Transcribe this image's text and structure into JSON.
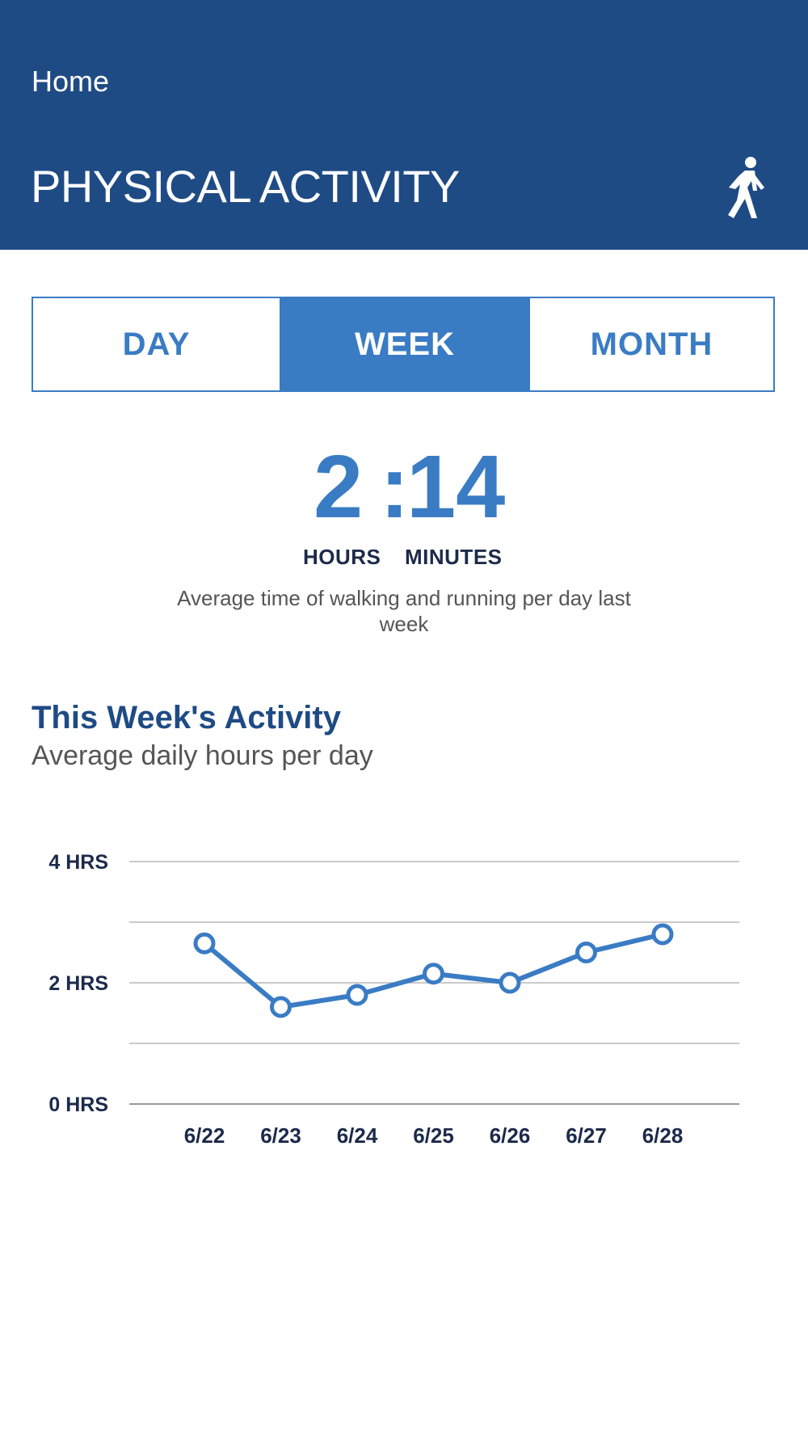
{
  "header": {
    "home_label": "Home",
    "title": "PHYSICAL ACTIVITY",
    "icon": "walking-person-icon"
  },
  "tabs": [
    {
      "label": "DAY",
      "active": false
    },
    {
      "label": "WEEK",
      "active": true
    },
    {
      "label": "MONTH",
      "active": false
    }
  ],
  "summary": {
    "hours": "2",
    "separator": ":",
    "minutes": "14",
    "hours_label": "HOURS",
    "minutes_label": "MINUTES",
    "description": "Average time of walking and running per day last week"
  },
  "section": {
    "title": "This Week's Activity",
    "subtitle": "Average daily hours per day"
  },
  "colors": {
    "header_bg": "#1f4b85",
    "accent": "#3a7cc4",
    "dark_text": "#1c2a4a"
  },
  "chart_data": {
    "type": "line",
    "x": [
      "6/22",
      "6/23",
      "6/24",
      "6/25",
      "6/26",
      "6/27",
      "6/28"
    ],
    "values": [
      2.65,
      1.6,
      1.8,
      2.15,
      2.0,
      2.5,
      2.8
    ],
    "ylim": [
      0,
      4
    ],
    "yticks": [
      0,
      1,
      2,
      3,
      4
    ],
    "ytick_labels": {
      "0": "0 HRS",
      "2": "2 HRS",
      "4": "4 HRS"
    },
    "grid": true,
    "title": "",
    "xlabel": "",
    "ylabel": ""
  }
}
